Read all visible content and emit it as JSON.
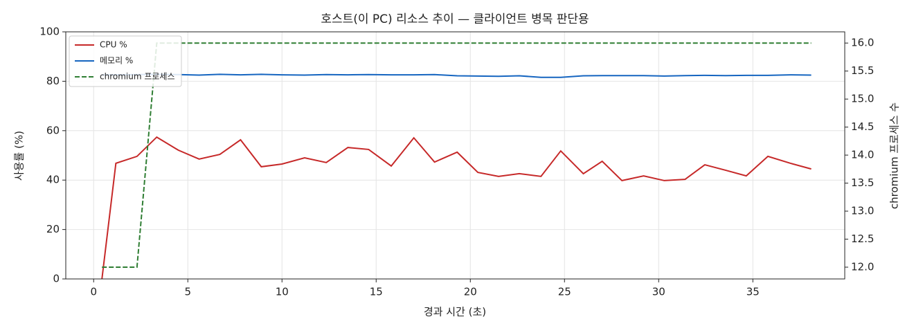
{
  "chart_data": {
    "type": "line",
    "title": "호스트(이 PC) 리소스 추이 — 클라이언트 병목 판단용",
    "xlabel": "경과 시간 (초)",
    "ylabel": "사용률 (%)",
    "y2label": "chromium 프로세스 수",
    "x": [
      0.44,
      1.18,
      2.3,
      3.35,
      4.5,
      5.6,
      6.7,
      7.8,
      8.9,
      10.0,
      11.2,
      12.35,
      13.5,
      14.6,
      15.8,
      17.0,
      18.1,
      19.3,
      20.4,
      21.5,
      22.6,
      23.75,
      24.8,
      26.0,
      27.0,
      28.05,
      29.2,
      30.3,
      31.4,
      32.45,
      33.55,
      34.65,
      35.8,
      37.0,
      38.1
    ],
    "series": [
      {
        "name": "CPU %",
        "color": "#c62828",
        "values": [
          0,
          46.8,
          49.6,
          57.4,
          52.1,
          48.5,
          50.4,
          56.3,
          45.4,
          46.5,
          49.0,
          47.1,
          53.2,
          52.4,
          45.7,
          57.1,
          47.3,
          51.3,
          43.1,
          41.5,
          42.6,
          41.5,
          51.8,
          42.6,
          47.6,
          39.8,
          41.7,
          39.8,
          40.3,
          46.2,
          44.0,
          41.7,
          49.6,
          46.8,
          44.5
        ]
      },
      {
        "name": "메모리 %",
        "color": "#1565c0",
        "values": [
          82.6,
          82.6,
          82.7,
          82.8,
          82.7,
          82.5,
          82.8,
          82.6,
          82.8,
          82.6,
          82.5,
          82.7,
          82.6,
          82.7,
          82.6,
          82.6,
          82.7,
          82.2,
          82.1,
          82.0,
          82.2,
          81.6,
          81.6,
          82.2,
          82.3,
          82.3,
          82.3,
          82.1,
          82.3,
          82.4,
          82.3,
          82.4,
          82.4,
          82.6,
          82.5
        ]
      },
      {
        "name": "chromium 프로세스",
        "color": "#2e7d32",
        "linestyle": "dashed",
        "axis": "y2",
        "values": [
          12,
          12,
          12,
          16,
          16,
          16,
          16,
          16,
          16,
          16,
          16,
          16,
          16,
          16,
          16,
          16,
          16,
          16,
          16,
          16,
          16,
          16,
          16,
          16,
          16,
          16,
          16,
          16,
          16,
          16,
          16,
          16,
          16,
          16,
          16
        ]
      }
    ],
    "xlim": [
      -1.48,
      39.88
    ],
    "xticks": [
      0,
      5,
      10,
      15,
      20,
      25,
      30,
      35
    ],
    "ylim": [
      0,
      100
    ],
    "yticks": [
      0,
      20,
      40,
      60,
      80,
      100
    ],
    "y2lim": [
      11.79,
      16.2
    ],
    "y2ticks": [
      {
        "value": 12,
        "label": "12.0"
      },
      12.5,
      {
        "value": 13,
        "label": "13.0"
      },
      13.5,
      {
        "value": 14,
        "label": "14.0"
      },
      14.5,
      {
        "value": 15,
        "label": "15.0"
      },
      15.5,
      {
        "value": 16,
        "label": "16.0"
      }
    ],
    "grid": true,
    "legend": "upper-left"
  }
}
